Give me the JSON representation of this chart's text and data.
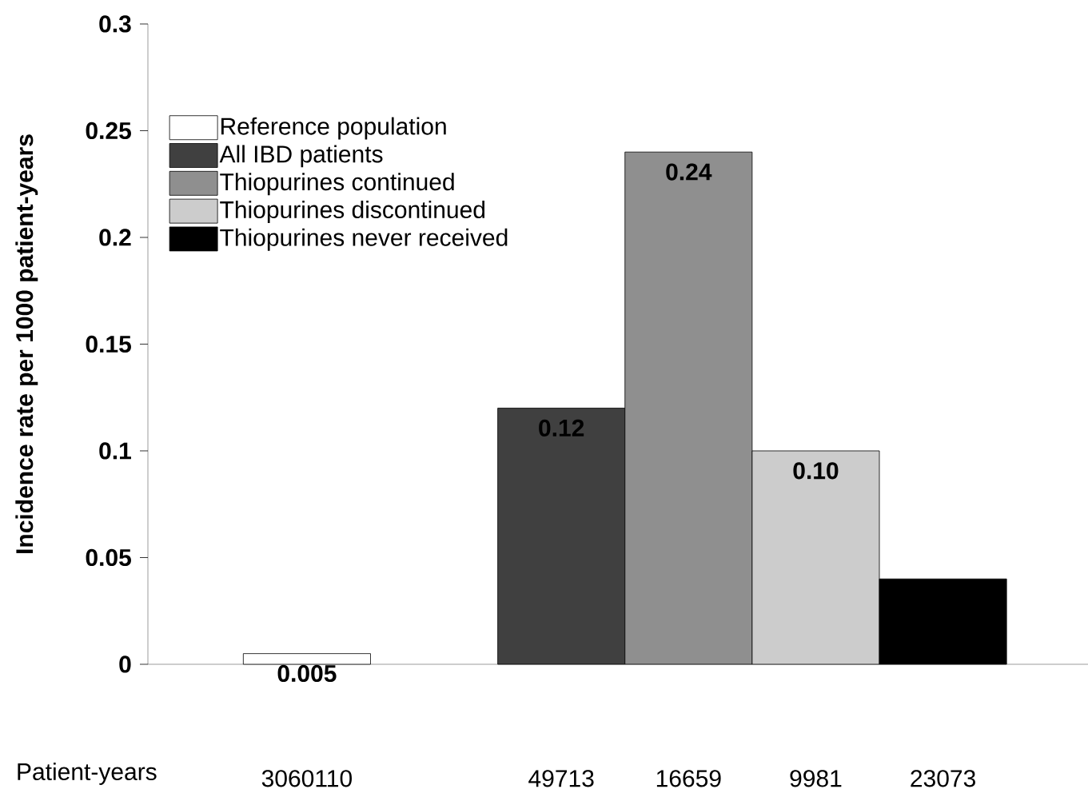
{
  "chart_data": {
    "type": "bar",
    "ylabel": "Incidence rate per 1000 patient-years",
    "xlabel": "Patient-years",
    "categories": [
      "3060110",
      null,
      "49713",
      "16659",
      "9981",
      "23073"
    ],
    "series": [
      {
        "name": "Reference population",
        "color": "#ffffff",
        "values": [
          0.005,
          null,
          null,
          null,
          null,
          null
        ],
        "value_labels": [
          "0.005",
          null,
          null,
          null,
          null,
          null
        ]
      },
      {
        "name": "All IBD patients",
        "color": "#404040",
        "values": [
          null,
          null,
          0.12,
          null,
          null,
          null
        ],
        "value_labels": [
          null,
          null,
          "0.12",
          null,
          null,
          null
        ]
      },
      {
        "name": "Thiopurines continued",
        "color": "#8f8f8f",
        "values": [
          null,
          null,
          null,
          0.24,
          null,
          null
        ],
        "value_labels": [
          null,
          null,
          null,
          "0.24",
          null,
          null
        ]
      },
      {
        "name": "Thiopurines discontinued",
        "color": "#cccccc",
        "values": [
          null,
          null,
          null,
          null,
          0.1,
          null
        ],
        "value_labels": [
          null,
          null,
          null,
          null,
          "0.10",
          null
        ]
      },
      {
        "name": "Thiopurines never received",
        "color": "#000000",
        "values": [
          null,
          null,
          null,
          null,
          null,
          0.04
        ]
      }
    ],
    "ylim": [
      0,
      0.3
    ],
    "yticks": [
      0,
      0.05,
      0.1,
      0.15,
      0.2,
      0.25,
      0.3
    ],
    "legend": "top left"
  }
}
